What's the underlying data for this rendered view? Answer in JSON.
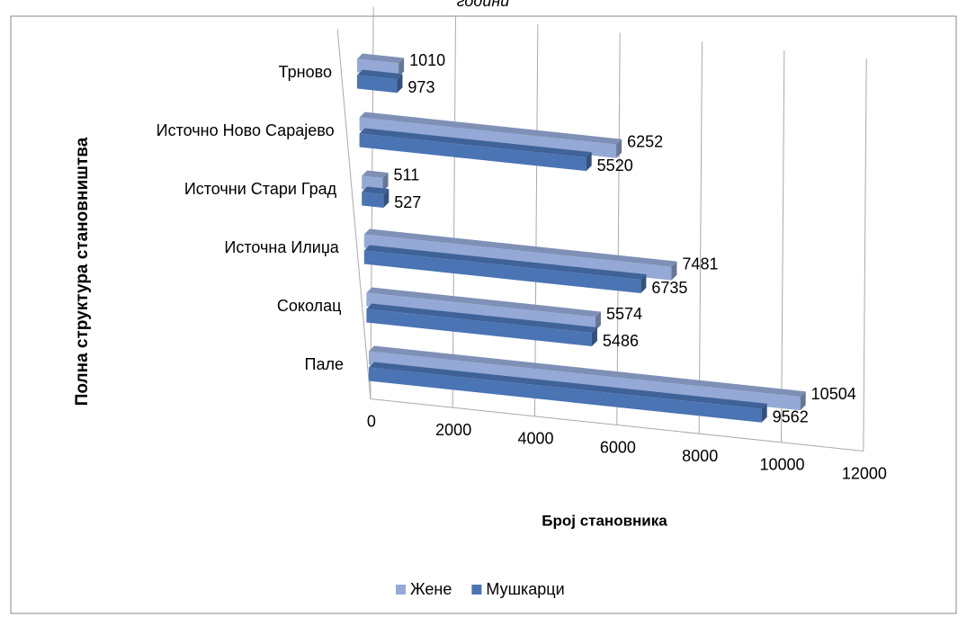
{
  "chart_data": {
    "type": "bar3d_horizontal",
    "title": "години",
    "categories": [
      "Трново",
      "Источно Ново Сарајево",
      "Источни Стари Град",
      "Источна Илиџа",
      "Соколац",
      "Пале"
    ],
    "series": [
      {
        "name": "Жене",
        "color": "#95a9d6",
        "values": [
          1010,
          6252,
          511,
          7481,
          5574,
          10504
        ]
      },
      {
        "name": "Мушкарци",
        "color": "#4a74b3",
        "values": [
          973,
          5520,
          527,
          6735,
          5486,
          9562
        ]
      }
    ],
    "xlim": [
      0,
      12000
    ],
    "xticks": [
      0,
      2000,
      4000,
      6000,
      8000,
      10000,
      12000
    ],
    "xlabel": "Број становника",
    "ylabel": "Полна структура становништва",
    "grid": true,
    "legend": "bottom"
  }
}
